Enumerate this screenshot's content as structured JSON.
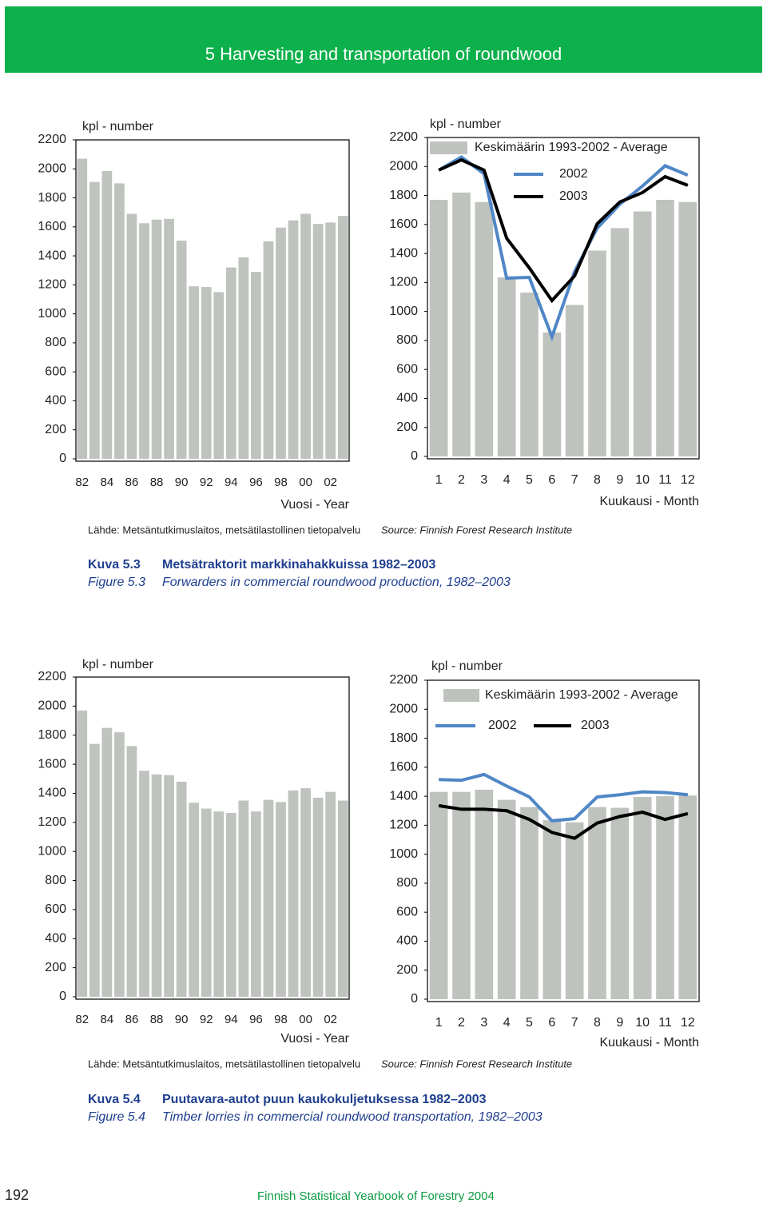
{
  "header": {
    "title": "5 Harvesting and transportation of roundwood"
  },
  "chart_data": [
    {
      "type": "bar",
      "y_label": "kpl - number",
      "x_label": "Vuosi - Year",
      "categories": [
        "82",
        null,
        "84",
        null,
        "86",
        null,
        "88",
        null,
        "90",
        null,
        "92",
        null,
        "94",
        null,
        "96",
        null,
        "98",
        null,
        "00",
        null,
        "02",
        null
      ],
      "values": [
        2070,
        1910,
        1985,
        1900,
        1690,
        1625,
        1650,
        1655,
        1505,
        1190,
        1185,
        1150,
        1320,
        1390,
        1290,
        1500,
        1595,
        1645,
        1690,
        1620,
        1630,
        1675
      ],
      "color": "#bfc3be",
      "ylim": [
        0,
        2200
      ],
      "yticks": [
        0,
        200,
        400,
        600,
        800,
        1000,
        1200,
        1400,
        1600,
        1800,
        2000,
        2200
      ]
    },
    {
      "type": "combo",
      "y_label": "kpl - number",
      "x_label": "Kuukausi - Month",
      "categories": [
        "1",
        "2",
        "3",
        "4",
        "5",
        "6",
        "7",
        "8",
        "9",
        "10",
        "11",
        "12"
      ],
      "series": [
        {
          "name": "Keskimäärin 1993-2002 - Average",
          "style": "bar",
          "color": "#bfc3be",
          "values": [
            1770,
            1820,
            1755,
            1235,
            1130,
            855,
            1045,
            1420,
            1575,
            1690,
            1770,
            1755
          ]
        },
        {
          "name": "2002",
          "style": "line",
          "color": "#4f86c6",
          "values": [
            1975,
            2065,
            1950,
            1230,
            1235,
            825,
            1275,
            1575,
            1740,
            1865,
            2005,
            1940
          ]
        },
        {
          "name": "2003",
          "style": "line",
          "color": "#000000",
          "values": [
            1975,
            2045,
            1975,
            1505,
            1300,
            1075,
            1245,
            1605,
            1755,
            1820,
            1930,
            1870
          ]
        }
      ],
      "ylim": [
        0,
        2200
      ],
      "yticks": [
        0,
        200,
        400,
        600,
        800,
        1000,
        1200,
        1400,
        1600,
        1800,
        2000,
        2200
      ]
    },
    {
      "type": "bar",
      "y_label": "kpl - number",
      "x_label": "Vuosi - Year",
      "categories": [
        "82",
        null,
        "84",
        null,
        "86",
        null,
        "88",
        null,
        "90",
        null,
        "92",
        null,
        "94",
        null,
        "96",
        null,
        "98",
        null,
        "00",
        null,
        "02",
        null
      ],
      "values": [
        1970,
        1740,
        1850,
        1820,
        1725,
        1555,
        1530,
        1525,
        1480,
        1335,
        1295,
        1275,
        1265,
        1350,
        1275,
        1355,
        1340,
        1420,
        1435,
        1370,
        1410,
        1350
      ],
      "color": "#bfc3be",
      "ylim": [
        0,
        2200
      ],
      "yticks": [
        0,
        200,
        400,
        600,
        800,
        1000,
        1200,
        1400,
        1600,
        1800,
        2000,
        2200
      ]
    },
    {
      "type": "combo",
      "y_label": "kpl - number",
      "x_label": "Kuukausi - Month",
      "categories": [
        "1",
        "2",
        "3",
        "4",
        "5",
        "6",
        "7",
        "8",
        "9",
        "10",
        "11",
        "12"
      ],
      "series": [
        {
          "name": "Keskimäärin 1993-2002 - Average",
          "style": "bar",
          "color": "#bfc3be",
          "values": [
            1430,
            1430,
            1445,
            1375,
            1325,
            1235,
            1220,
            1325,
            1320,
            1395,
            1400,
            1405
          ]
        },
        {
          "name": "2002",
          "style": "line",
          "color": "#4f86c6",
          "values": [
            1515,
            1510,
            1550,
            1470,
            1395,
            1230,
            1245,
            1395,
            1410,
            1430,
            1425,
            1410
          ]
        },
        {
          "name": "2003",
          "style": "line",
          "color": "#000000",
          "values": [
            1335,
            1310,
            1310,
            1300,
            1240,
            1150,
            1110,
            1215,
            1260,
            1290,
            1240,
            1280
          ]
        }
      ],
      "ylim": [
        0,
        2200
      ],
      "yticks": [
        0,
        200,
        400,
        600,
        800,
        1000,
        1200,
        1400,
        1600,
        1800,
        2000,
        2200
      ]
    }
  ],
  "figures": [
    {
      "source_fi": "Lähde: Metsäntutkimuslaitos, metsätilastollinen tietopalvelu",
      "source_en": "Source: Finnish Forest Research Institute",
      "label_fi": "Kuva 5.3",
      "title_fi": "Metsätraktorit markkinahakkuissa 1982–2003",
      "label_en": "Figure 5.3",
      "title_en": "Forwarders in commercial roundwood production, 1982–2003"
    },
    {
      "source_fi": "Lähde: Metsäntutkimuslaitos, metsätilastollinen tietopalvelu",
      "source_en": "Source: Finnish Forest Research Institute",
      "label_fi": "Kuva 5.4",
      "title_fi": "Puutavara-autot puun kaukokuljetuksessa 1982–2003",
      "label_en": "Figure 5.4",
      "title_en": "Timber lorries in commercial roundwood transportation, 1982–2003"
    }
  ],
  "footer": {
    "page": "192",
    "publication": "Finnish Statistical Yearbook of Forestry 2004"
  }
}
